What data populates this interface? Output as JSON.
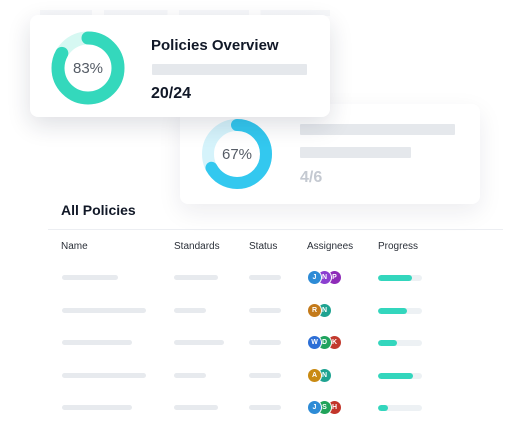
{
  "card1": {
    "percent_label": "83%",
    "percent": 83,
    "title": "Policies Overview",
    "count": "20/24",
    "ring_color": "#34d8bc",
    "track_color": "#d6f8f2"
  },
  "card2": {
    "percent_label": "67%",
    "percent": 67,
    "count": "4/6",
    "ring_color": "#33c8ef",
    "track_color": "#d5f3fb"
  },
  "table": {
    "section_title": "All Policies",
    "headers": {
      "name": "Name",
      "standards": "Standards",
      "status": "Status",
      "assignees": "Assignees",
      "progress": "Progress"
    },
    "rows": [
      {
        "assignees": [
          {
            "initial": "J",
            "color": "#2d8bd6"
          },
          {
            "initial": "N",
            "color": "#8b3fd0"
          },
          {
            "initial": "P",
            "color": "#8e2bb8"
          }
        ],
        "progress": 0.78
      },
      {
        "assignees": [
          {
            "initial": "R",
            "color": "#c47a1a"
          },
          {
            "initial": "N",
            "color": "#1fa391"
          }
        ],
        "progress": 0.66
      },
      {
        "assignees": [
          {
            "initial": "W",
            "color": "#2d6fd6"
          },
          {
            "initial": "D",
            "color": "#1fa35e"
          },
          {
            "initial": "K",
            "color": "#c23a2e"
          }
        ],
        "progress": 0.43
      },
      {
        "assignees": [
          {
            "initial": "A",
            "color": "#c98a12"
          },
          {
            "initial": "N",
            "color": "#1fa391"
          }
        ],
        "progress": 0.8
      },
      {
        "assignees": [
          {
            "initial": "J",
            "color": "#2d8bd6"
          },
          {
            "initial": "S",
            "color": "#20a35a"
          },
          {
            "initial": "H",
            "color": "#c2352a"
          }
        ],
        "progress": 0.22
      }
    ]
  }
}
